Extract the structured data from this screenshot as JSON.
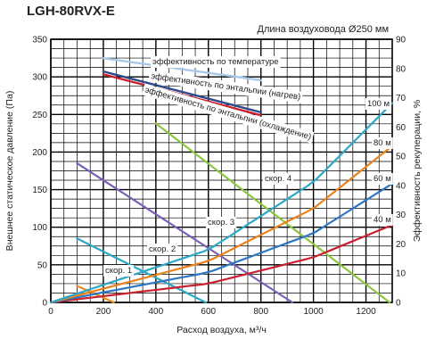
{
  "page": {
    "title": "LGH-80RVX-E",
    "subtitle": "Длина воздуховода Ø250 мм"
  },
  "chart_data": {
    "type": "line",
    "title": "LGH-80RVX-E",
    "subtitle": "Длина воздуховода Ø250 мм",
    "xlabel": "Расход воздуха, м³/ч",
    "ylabel": "Внешнее статическое давление (Па)",
    "y2label": "Эффективность рекуперации, %",
    "xlim": [
      0,
      1300
    ],
    "ylim": [
      0,
      350
    ],
    "y2lim": [
      0,
      90
    ],
    "xticks": [
      0,
      200,
      400,
      600,
      800,
      1000,
      1200
    ],
    "yticks": [
      0,
      50,
      100,
      150,
      200,
      250,
      300,
      350
    ],
    "y2ticks": [
      0,
      10,
      20,
      30,
      40,
      50,
      60,
      70,
      80,
      90
    ],
    "grid": true,
    "fan_speeds": [
      {
        "name": "скор. 1",
        "color": "#f08c1c",
        "x": [
          100,
          240
        ],
        "y": [
          22,
          0
        ]
      },
      {
        "name": "скор. 2",
        "color": "#2ba8c8",
        "x": [
          100,
          590
        ],
        "y": [
          85,
          0
        ]
      },
      {
        "name": "скор. 3",
        "color": "#7a5fb5",
        "x": [
          100,
          920
        ],
        "y": [
          185,
          0
        ]
      },
      {
        "name": "скор. 4",
        "color": "#8cc63f",
        "x": [
          400,
          1290
        ],
        "y": [
          238,
          0
        ]
      }
    ],
    "duct_curves": [
      {
        "name": "40 м",
        "color": "#c8202e",
        "x": [
          0,
          600,
          1000,
          1300
        ],
        "y": [
          0,
          25,
          60,
          103
        ]
      },
      {
        "name": "60 м",
        "color": "#2e76c2",
        "x": [
          0,
          600,
          1000,
          1300
        ],
        "y": [
          0,
          40,
          92,
          158
        ]
      },
      {
        "name": "80 м",
        "color": "#e8821e",
        "x": [
          0,
          600,
          1000,
          1300
        ],
        "y": [
          0,
          55,
          125,
          208
        ]
      },
      {
        "name": "100 м",
        "color": "#2ba8c8",
        "x": [
          0,
          600,
          1000,
          1300
        ],
        "y": [
          0,
          70,
          160,
          265
        ]
      }
    ],
    "efficiency": [
      {
        "name": "эффективность по температуре",
        "color": "#a8c8e8",
        "x": [
          200,
          800
        ],
        "y2": [
          83.5,
          76
        ]
      },
      {
        "name": "эффективность по энтальпии (нагрев)",
        "color": "#2e4a8a",
        "x": [
          200,
          800
        ],
        "y2": [
          79,
          65
        ]
      },
      {
        "name": "эффективность по энтальпии (охлаждение)",
        "color": "#c8202e",
        "x": [
          200,
          800
        ],
        "y2": [
          78,
          64
        ]
      }
    ]
  }
}
